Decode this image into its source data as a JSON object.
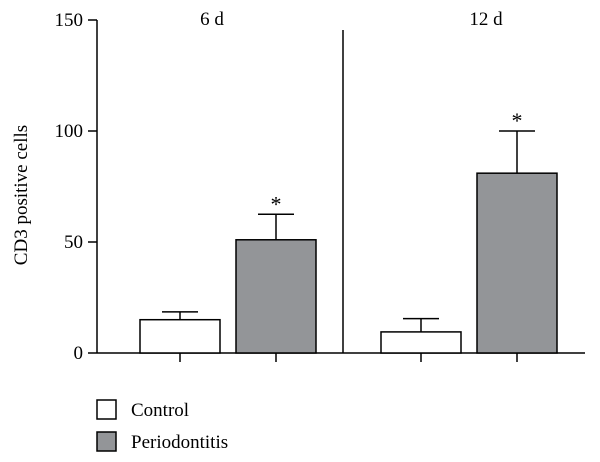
{
  "chart_data": {
    "type": "bar",
    "ylabel": "CD3 positive cells",
    "ylim": [
      0,
      150
    ],
    "yticks": [
      "0",
      "50",
      "100",
      "150"
    ],
    "panels": [
      {
        "label": "6 d",
        "categories": [
          "Control",
          "Periodontitis"
        ],
        "values": [
          15,
          51
        ],
        "errors": [
          3.5,
          11.5
        ],
        "significance": [
          "",
          "*"
        ]
      },
      {
        "label": "12 d",
        "categories": [
          "Control",
          "Periodontitis"
        ],
        "values": [
          9.5,
          81
        ],
        "errors": [
          6,
          19
        ],
        "significance": [
          "",
          "*"
        ]
      }
    ],
    "series": [
      {
        "name": "Control",
        "color": "#ffffff"
      },
      {
        "name": "Periodontitis",
        "color": "#939598"
      }
    ],
    "legend": "bottom-left",
    "grid": false
  }
}
